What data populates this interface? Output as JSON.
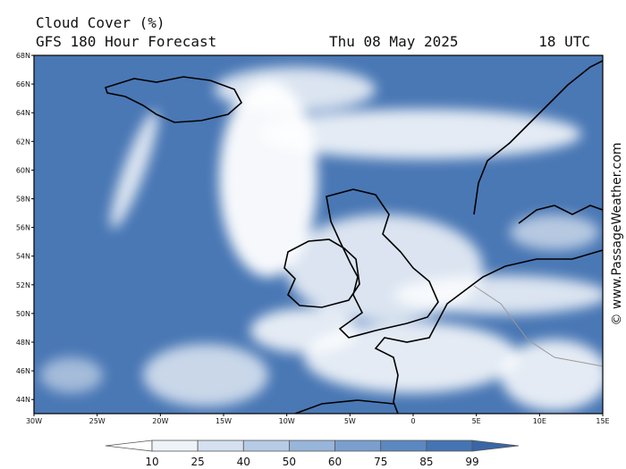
{
  "header": {
    "title": "Cloud Cover (%)",
    "model": "GFS 180 Hour Forecast",
    "date": "Thu 08 May 2025",
    "time": "18 UTC"
  },
  "map": {
    "lat_labels": [
      "68N",
      "66N",
      "64N",
      "62N",
      "60N",
      "58N",
      "56N",
      "54N",
      "52N",
      "50N",
      "48N",
      "46N",
      "44N"
    ],
    "lon_labels": [
      "30W",
      "25W",
      "20W",
      "15W",
      "10W",
      "5W",
      "0",
      "5E",
      "10E",
      "15E"
    ]
  },
  "legend": {
    "levels": [
      10,
      25,
      40,
      50,
      60,
      75,
      85,
      99
    ],
    "colors": [
      "#ffffff",
      "#eef3fa",
      "#d5e1f1",
      "#b6cbe6",
      "#98b5da",
      "#7a9fcf",
      "#5c88c2",
      "#4574b3",
      "#3a66a6"
    ]
  },
  "credit": "© www.PassageWeather.com"
}
